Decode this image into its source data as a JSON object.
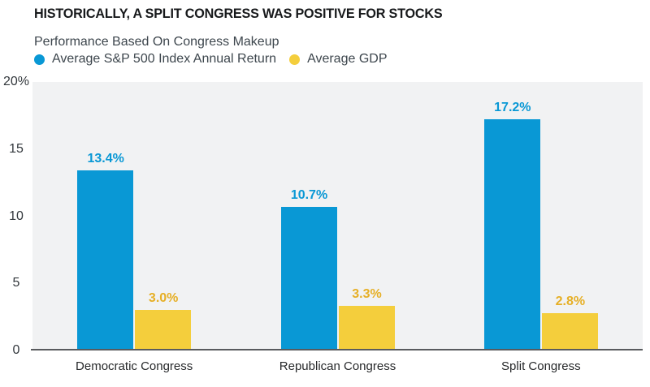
{
  "chart_data": {
    "type": "bar",
    "title": "HISTORICALLY, A SPLIT CONGRESS WAS POSITIVE FOR STOCKS",
    "subtitle": "Performance Based On Congress Makeup",
    "categories": [
      "Democratic Congress",
      "Republican Congress",
      "Split Congress"
    ],
    "series": [
      {
        "name": "Average S&P 500 Index Annual Return",
        "color": "#0998d5",
        "label_color": "#0998d5",
        "values": [
          13.4,
          10.7,
          17.2
        ],
        "value_labels": [
          "13.4%",
          "10.7%",
          "17.2%"
        ]
      },
      {
        "name": "Average GDP",
        "color": "#f4ce3c",
        "label_color": "#e6af25",
        "values": [
          3.0,
          3.3,
          2.8
        ],
        "value_labels": [
          "3.0%",
          "3.3%",
          "2.8%"
        ]
      }
    ],
    "xlabel": "",
    "ylabel": "",
    "ylim": [
      0,
      20
    ],
    "yticks": [
      "20%",
      "15",
      "10",
      "5",
      "0"
    ],
    "grid": false,
    "legend_position": "top-left",
    "plot_background": "#f1f2f3",
    "axis_line_color": "#595b5e",
    "title_color": "#17191b",
    "text_color": "#3d464d"
  }
}
